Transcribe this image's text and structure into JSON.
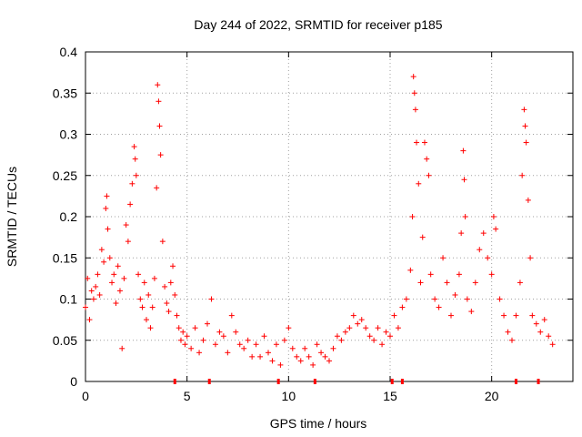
{
  "chart_data": {
    "type": "scatter",
    "title": "Day 244 of 2022, SRMTID for receiver p185",
    "xlabel": "GPS time / hours",
    "ylabel": "SRMTID / TECUs",
    "xlim": [
      0,
      24
    ],
    "ylim": [
      0,
      0.4
    ],
    "xticks": [
      0,
      5,
      10,
      15,
      20
    ],
    "xtick_labels": [
      "0",
      "5",
      "10",
      "15",
      "20"
    ],
    "yticks": [
      0,
      0.05,
      0.1,
      0.15,
      0.2,
      0.25,
      0.3,
      0.35,
      0.4
    ],
    "ytick_labels": [
      "0",
      "0.05",
      "0.1",
      "0.15",
      "0.2",
      "0.25",
      "0.3",
      "0.35",
      "0.4"
    ],
    "grid": true,
    "series": [
      {
        "name": "SRMTID",
        "color": "#ff0000",
        "marker": "+",
        "points": [
          [
            0.0,
            0.09
          ],
          [
            0.1,
            0.125
          ],
          [
            0.2,
            0.075
          ],
          [
            0.3,
            0.11
          ],
          [
            0.4,
            0.1
          ],
          [
            0.5,
            0.115
          ],
          [
            0.6,
            0.13
          ],
          [
            0.7,
            0.105
          ],
          [
            0.8,
            0.16
          ],
          [
            0.9,
            0.145
          ],
          [
            1.0,
            0.21
          ],
          [
            1.05,
            0.225
          ],
          [
            1.1,
            0.185
          ],
          [
            1.2,
            0.15
          ],
          [
            1.3,
            0.12
          ],
          [
            1.4,
            0.13
          ],
          [
            1.5,
            0.095
          ],
          [
            1.6,
            0.14
          ],
          [
            1.7,
            0.11
          ],
          [
            1.8,
            0.04
          ],
          [
            1.9,
            0.125
          ],
          [
            2.0,
            0.19
          ],
          [
            2.1,
            0.17
          ],
          [
            2.2,
            0.215
          ],
          [
            2.3,
            0.24
          ],
          [
            2.4,
            0.285
          ],
          [
            2.45,
            0.27
          ],
          [
            2.5,
            0.25
          ],
          [
            2.6,
            0.13
          ],
          [
            2.7,
            0.1
          ],
          [
            2.8,
            0.09
          ],
          [
            2.9,
            0.12
          ],
          [
            3.0,
            0.075
          ],
          [
            3.1,
            0.105
          ],
          [
            3.2,
            0.065
          ],
          [
            3.3,
            0.09
          ],
          [
            3.4,
            0.125
          ],
          [
            3.5,
            0.235
          ],
          [
            3.55,
            0.36
          ],
          [
            3.6,
            0.34
          ],
          [
            3.65,
            0.31
          ],
          [
            3.7,
            0.275
          ],
          [
            3.8,
            0.17
          ],
          [
            3.9,
            0.115
          ],
          [
            4.0,
            0.095
          ],
          [
            4.1,
            0.085
          ],
          [
            4.2,
            0.12
          ],
          [
            4.3,
            0.14
          ],
          [
            4.4,
            0.105
          ],
          [
            4.5,
            0.08
          ],
          [
            4.6,
            0.065
          ],
          [
            4.7,
            0.05
          ],
          [
            4.8,
            0.06
          ],
          [
            4.9,
            0.045
          ],
          [
            5.0,
            0.055
          ],
          [
            5.2,
            0.04
          ],
          [
            5.4,
            0.065
          ],
          [
            5.6,
            0.035
          ],
          [
            5.8,
            0.05
          ],
          [
            6.0,
            0.07
          ],
          [
            6.2,
            0.1
          ],
          [
            6.4,
            0.045
          ],
          [
            6.6,
            0.06
          ],
          [
            6.8,
            0.055
          ],
          [
            7.0,
            0.035
          ],
          [
            7.2,
            0.08
          ],
          [
            7.4,
            0.06
          ],
          [
            7.6,
            0.045
          ],
          [
            7.8,
            0.04
          ],
          [
            8.0,
            0.05
          ],
          [
            8.2,
            0.03
          ],
          [
            8.4,
            0.045
          ],
          [
            8.6,
            0.03
          ],
          [
            8.8,
            0.055
          ],
          [
            9.0,
            0.035
          ],
          [
            9.2,
            0.025
          ],
          [
            9.4,
            0.045
          ],
          [
            9.6,
            0.02
          ],
          [
            9.8,
            0.05
          ],
          [
            10.0,
            0.065
          ],
          [
            10.2,
            0.04
          ],
          [
            10.4,
            0.03
          ],
          [
            10.6,
            0.025
          ],
          [
            10.8,
            0.04
          ],
          [
            11.0,
            0.03
          ],
          [
            11.2,
            0.02
          ],
          [
            11.4,
            0.045
          ],
          [
            11.6,
            0.035
          ],
          [
            11.8,
            0.03
          ],
          [
            12.0,
            0.025
          ],
          [
            12.2,
            0.04
          ],
          [
            12.4,
            0.055
          ],
          [
            12.6,
            0.05
          ],
          [
            12.8,
            0.06
          ],
          [
            13.0,
            0.065
          ],
          [
            13.2,
            0.08
          ],
          [
            13.4,
            0.07
          ],
          [
            13.6,
            0.075
          ],
          [
            13.8,
            0.065
          ],
          [
            14.0,
            0.055
          ],
          [
            14.2,
            0.05
          ],
          [
            14.4,
            0.065
          ],
          [
            14.6,
            0.045
          ],
          [
            14.8,
            0.06
          ],
          [
            15.0,
            0.055
          ],
          [
            15.2,
            0.08
          ],
          [
            15.4,
            0.065
          ],
          [
            15.6,
            0.09
          ],
          [
            15.8,
            0.1
          ],
          [
            16.0,
            0.135
          ],
          [
            16.1,
            0.2
          ],
          [
            16.15,
            0.37
          ],
          [
            16.2,
            0.35
          ],
          [
            16.25,
            0.33
          ],
          [
            16.3,
            0.29
          ],
          [
            16.4,
            0.24
          ],
          [
            16.5,
            0.12
          ],
          [
            16.6,
            0.175
          ],
          [
            16.7,
            0.29
          ],
          [
            16.8,
            0.27
          ],
          [
            16.9,
            0.25
          ],
          [
            17.0,
            0.13
          ],
          [
            17.2,
            0.1
          ],
          [
            17.4,
            0.09
          ],
          [
            17.6,
            0.15
          ],
          [
            17.8,
            0.12
          ],
          [
            18.0,
            0.08
          ],
          [
            18.2,
            0.105
          ],
          [
            18.4,
            0.13
          ],
          [
            18.5,
            0.18
          ],
          [
            18.6,
            0.28
          ],
          [
            18.65,
            0.245
          ],
          [
            18.7,
            0.2
          ],
          [
            18.8,
            0.1
          ],
          [
            19.0,
            0.085
          ],
          [
            19.2,
            0.12
          ],
          [
            19.4,
            0.16
          ],
          [
            19.6,
            0.18
          ],
          [
            19.8,
            0.15
          ],
          [
            20.0,
            0.13
          ],
          [
            20.1,
            0.2
          ],
          [
            20.2,
            0.185
          ],
          [
            20.4,
            0.1
          ],
          [
            20.6,
            0.08
          ],
          [
            20.8,
            0.06
          ],
          [
            21.0,
            0.05
          ],
          [
            21.2,
            0.08
          ],
          [
            21.4,
            0.12
          ],
          [
            21.5,
            0.25
          ],
          [
            21.6,
            0.33
          ],
          [
            21.65,
            0.31
          ],
          [
            21.7,
            0.29
          ],
          [
            21.8,
            0.22
          ],
          [
            21.9,
            0.15
          ],
          [
            22.0,
            0.08
          ],
          [
            22.2,
            0.07
          ],
          [
            22.4,
            0.06
          ],
          [
            22.6,
            0.075
          ],
          [
            22.8,
            0.055
          ],
          [
            23.0,
            0.045
          ]
        ]
      }
    ],
    "bottom_marks_x": [
      4.4,
      6.1,
      9.5,
      11.3,
      15.1,
      15.6,
      21.2,
      22.3
    ]
  }
}
